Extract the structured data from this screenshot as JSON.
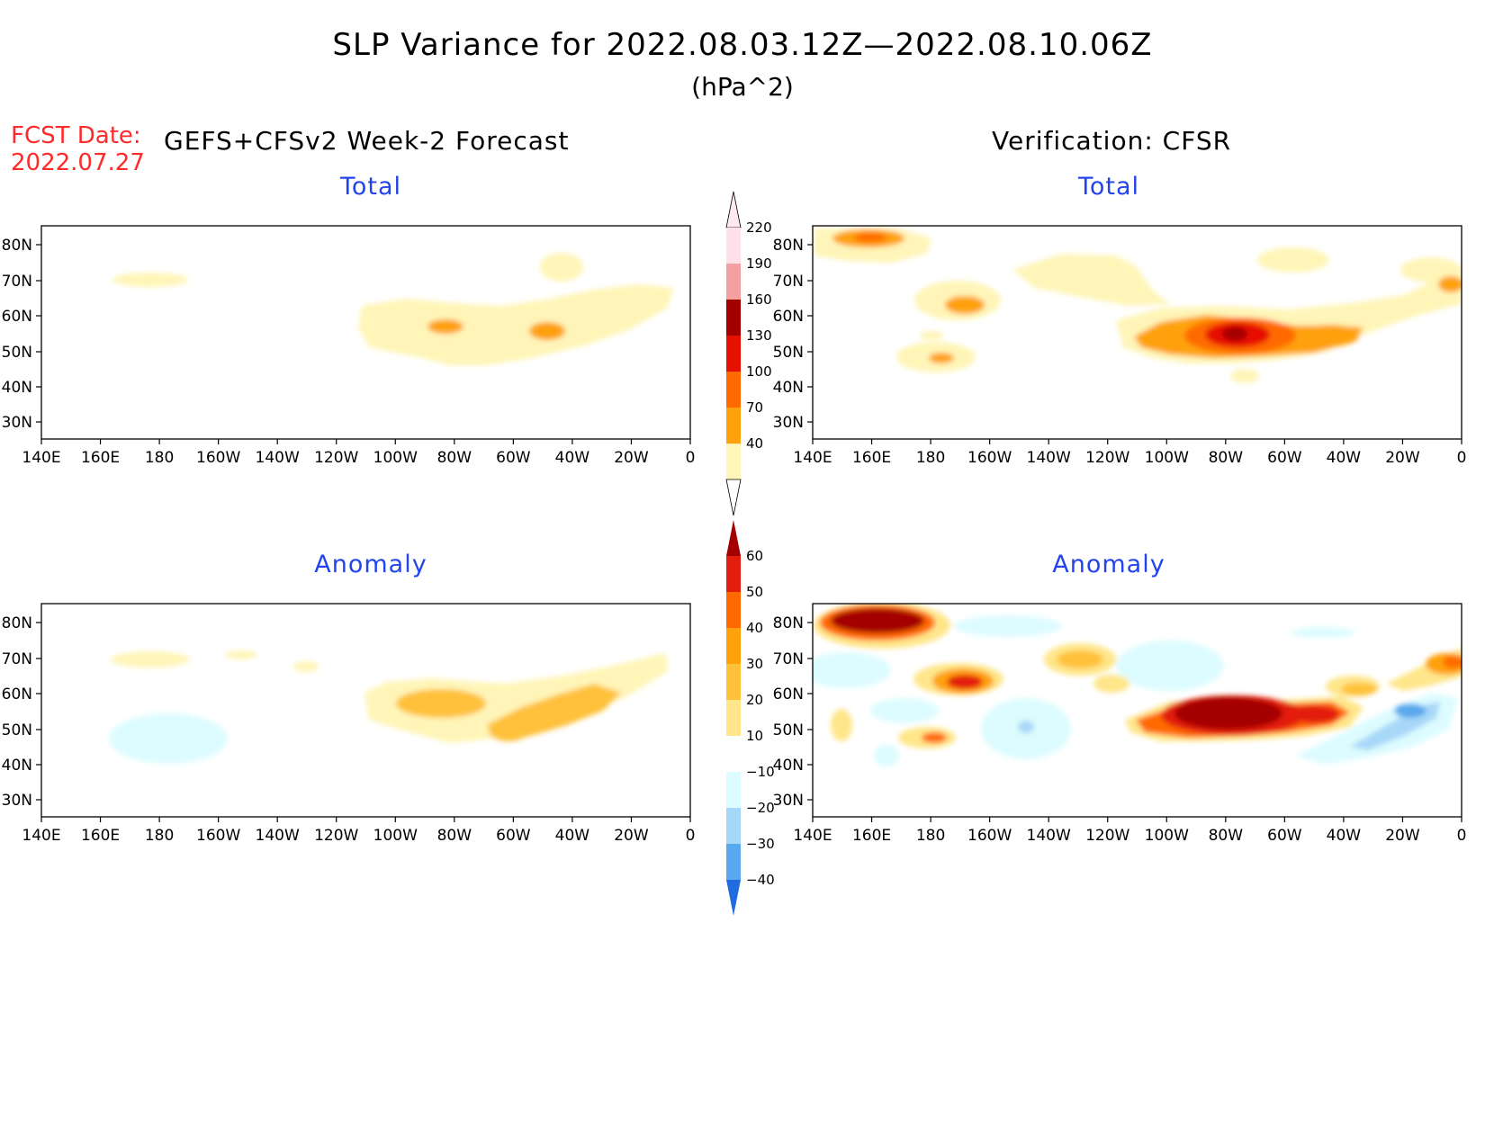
{
  "figure": {
    "title": "SLP Variance for 2022.08.03.12Z—2022.08.10.06Z",
    "units": "(hPa^2)",
    "fcst_label": "FCST Date:",
    "fcst_date": "2022.07.27",
    "left_header": "GEFS+CFSv2 Week-2 Forecast",
    "right_header": "Verification: CFSR"
  },
  "panels": [
    {
      "id": "fcst-total",
      "title": "Total"
    },
    {
      "id": "verif-total",
      "title": "Total"
    },
    {
      "id": "fcst-anomaly",
      "title": "Anomaly"
    },
    {
      "id": "verif-anomaly",
      "title": "Anomaly"
    }
  ],
  "axes": {
    "x_ticks": [
      "140E",
      "160E",
      "180",
      "160W",
      "140W",
      "120W",
      "100W",
      "80W",
      "60W",
      "40W",
      "20W",
      "0"
    ],
    "y_ticks": [
      "80N",
      "70N",
      "60N",
      "50N",
      "40N",
      "30N"
    ],
    "lon_range": [
      "140E",
      "0"
    ],
    "lat_range": [
      "25N",
      "85N"
    ]
  },
  "colorbars": {
    "total": {
      "labels": [
        "40",
        "70",
        "100",
        "130",
        "160",
        "190",
        "220"
      ],
      "colors": [
        "#fff5b8",
        "#fff5b8",
        "#ffa10c",
        "#ff6a00",
        "#e60f00",
        "#a50000",
        "#f4a0a0",
        "#ffe0e8"
      ]
    },
    "anomaly": {
      "labels": [
        "60",
        "50",
        "40",
        "30",
        "20",
        "10",
        "−10",
        "−20",
        "−30",
        "−40"
      ],
      "colors": [
        "#a50000",
        "#e31e0e",
        "#ff6a00",
        "#ffa10c",
        "#ffc13a",
        "#ffe68a",
        "#ffffff",
        "#ddfcff",
        "#a8d8f8",
        "#5aa8ee",
        "#1f6be0"
      ]
    }
  }
}
